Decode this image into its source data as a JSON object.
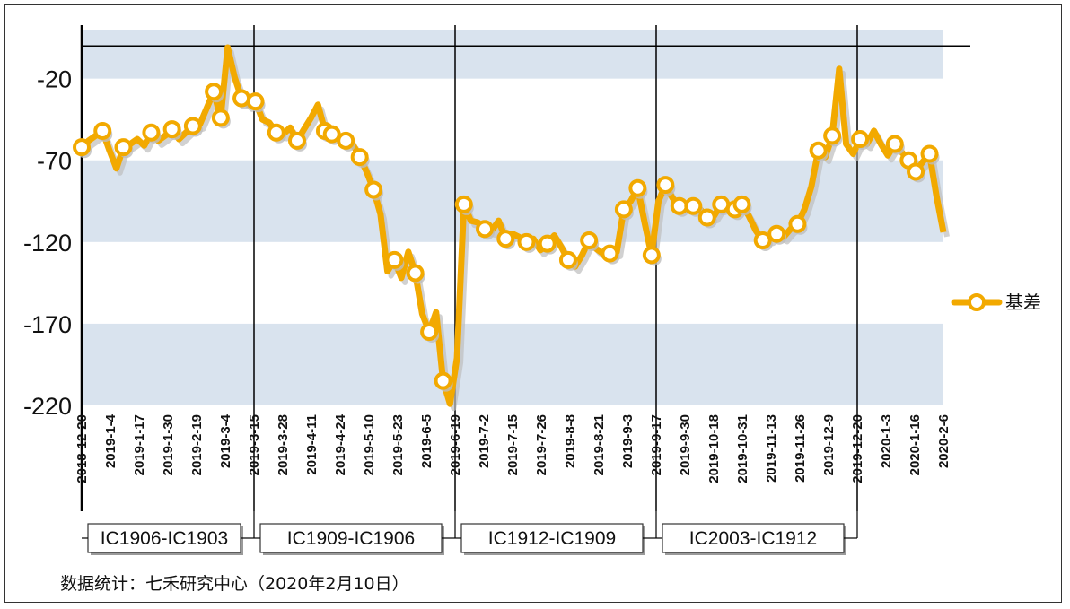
{
  "source_note": "数据统计：七禾研究中心（2020年2月10日）",
  "colors": {
    "series": "#F2A900",
    "band": "#D9E3EE",
    "marker_fill": "#FFFFFF",
    "shadow": "#BDBDBD",
    "line": "#000000"
  },
  "chart_data": {
    "type": "line",
    "title": "",
    "xlabel": "",
    "ylabel": "",
    "ylim": [
      -220,
      10
    ],
    "y_ticks": [
      -20,
      -70,
      -120,
      -170,
      -220
    ],
    "grid": "alternating horizontal bands",
    "legend_position": "right",
    "x_tick_labels": [
      "2018-12-20",
      "2019-1-4",
      "2019-1-17",
      "2019-1-30",
      "2019-2-19",
      "2019-3-4",
      "2019-3-15",
      "2019-3-28",
      "2019-4-11",
      "2019-4-24",
      "2019-5-10",
      "2019-5-23",
      "2019-6-5",
      "2019-6-19",
      "2019-7-2",
      "2019-7-15",
      "2019-7-26",
      "2019-8-8",
      "2019-8-21",
      "2019-9-3",
      "2019-9-17",
      "2019-9-30",
      "2019-10-18",
      "2019-10-31",
      "2019-11-13",
      "2019-11-26",
      "2019-12-9",
      "2019-12-20",
      "2020-1-3",
      "2020-1-16",
      "2020-2-6"
    ],
    "reference_line": 0,
    "contract_periods": [
      {
        "label": "IC1906-IC1903",
        "start": "2018-12-20",
        "end": "2019-3-15"
      },
      {
        "label": "IC1909-IC1906",
        "start": "2019-3-15",
        "end": "2019-6-19"
      },
      {
        "label": "IC1912-IC1909",
        "start": "2019-6-19",
        "end": "2019-9-17"
      },
      {
        "label": "IC2003-IC1912",
        "start": "2019-9-17",
        "end": "2019-12-20"
      }
    ],
    "series": [
      {
        "name": "基差",
        "values": [
          -62,
          -58,
          -55,
          -52,
          -64,
          -75,
          -62,
          -60,
          -57,
          -61,
          -53,
          -58,
          -55,
          -51,
          -57,
          -53,
          -49,
          -48,
          -38,
          -28,
          -44,
          -1,
          -19,
          -32,
          -36,
          -34,
          -45,
          -47,
          -53,
          -54,
          -50,
          -58,
          -51,
          -44,
          -36,
          -52,
          -54,
          -55,
          -58,
          -60,
          -68,
          -77,
          -88,
          -103,
          -138,
          -131,
          -142,
          -126,
          -139,
          -164,
          -175,
          -163,
          -205,
          -219,
          -191,
          -97,
          -107,
          -108,
          -112,
          -113,
          -107,
          -118,
          -115,
          -117,
          -120,
          -118,
          -125,
          -121,
          -116,
          -123,
          -131,
          -135,
          -128,
          -119,
          -124,
          -127,
          -127,
          -126,
          -100,
          -95,
          -87,
          -108,
          -128,
          -95,
          -85,
          -93,
          -98,
          -98,
          -98,
          -100,
          -105,
          -104,
          -97,
          -100,
          -100,
          -97,
          -104,
          -113,
          -119,
          -118,
          -115,
          -117,
          -112,
          -109,
          -100,
          -86,
          -64,
          -68,
          -55,
          -14,
          -60,
          -66,
          -57,
          -60,
          -52,
          -60,
          -67,
          -60,
          -65,
          -70,
          -77,
          -71,
          -66,
          -92,
          -114
        ],
        "marker_indices": [
          0,
          3,
          6,
          10,
          13,
          16,
          19,
          20,
          23,
          25,
          28,
          31,
          35,
          36,
          38,
          40,
          42,
          45,
          48,
          50,
          52,
          55,
          58,
          61,
          64,
          67,
          70,
          73,
          76,
          78,
          80,
          82,
          84,
          86,
          88,
          90,
          92,
          94,
          95,
          98,
          100,
          103,
          106,
          108,
          112,
          117,
          119,
          120,
          122
        ]
      }
    ]
  }
}
